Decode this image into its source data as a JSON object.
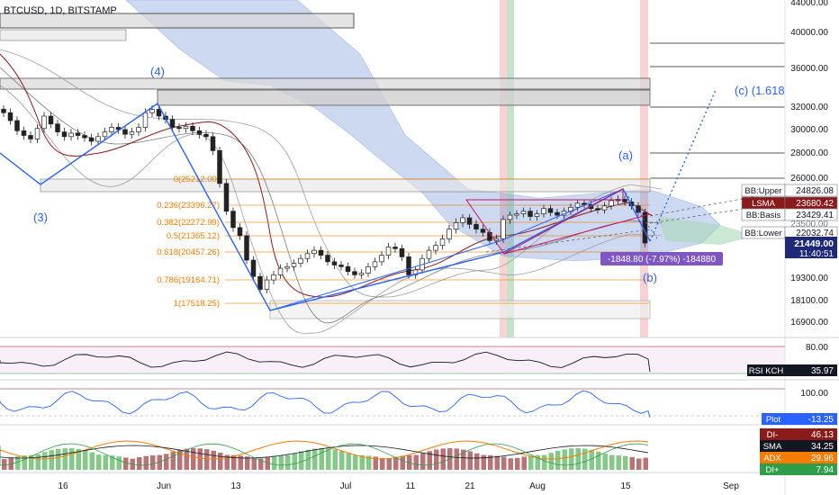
{
  "header": {
    "symbol_line": "BTCUSD, 1D, BITSTAMP"
  },
  "price_axis": {
    "ticks": [
      "44000.00",
      "40000.00",
      "36000.00",
      "32000.00",
      "30000.00",
      "28000.00",
      "26000.00",
      "19300.00",
      "18100.00",
      "16900.00"
    ]
  },
  "time_axis": {
    "labels": [
      "16",
      "Jun",
      "13",
      "Jul",
      "11",
      "21",
      "Aug",
      "15",
      "Sep"
    ]
  },
  "fib": {
    "levels": [
      "0(25212.00)",
      "0.236(23396.27)",
      "0.382(22272.99)",
      "0.5(21365.12)",
      "0.618(20457.26)",
      "0.786(19164.71)",
      "1(17518.25)"
    ]
  },
  "elliott": [
    "(3)",
    "(4)",
    "(a)",
    "(b)",
    "(c) (1.618"
  ],
  "measure": {
    "text": "-1848.80 (-7.97%) -184880"
  },
  "price_tags": [
    {
      "label": "BB:Upper",
      "value": "24826.08",
      "color": "#ffffff"
    },
    {
      "label": "LSMA",
      "value": "23680.42",
      "color": "#8b1a1a"
    },
    {
      "label": "",
      "value": "23500.00",
      "color": "#ffffff"
    },
    {
      "label": "BB:Basis",
      "value": "23429.41",
      "color": "#ffffff"
    },
    {
      "label": "BB:Lower",
      "value": "22032.74",
      "color": "#ffffff"
    }
  ],
  "last_price": {
    "value": "21449.00",
    "countdown": "11:40:51"
  },
  "rsi_pane": {
    "ticks": [
      "80.00"
    ],
    "label": "RSI KCH",
    "value": "35.97"
  },
  "osc_pane": {
    "ticks": [
      "100.00"
    ],
    "label": "Plot",
    "value": "-13.25"
  },
  "dmi_pane": {
    "rows": [
      {
        "label": "DI-",
        "value": "46.13",
        "color": "#8b1a1a"
      },
      {
        "label": "SMA",
        "value": "34.25",
        "color": "#131722"
      },
      {
        "label": "ADX",
        "value": "29.96",
        "color": "#f57c00"
      },
      {
        "label": "DI+",
        "value": "7.94",
        "color": "#2e9e4a"
      }
    ]
  },
  "chart_data": {
    "type": "candlestick",
    "timeframe": "1D",
    "price_range": [
      16500,
      44000
    ],
    "closes_approx": [
      31500,
      30800,
      29900,
      29500,
      29200,
      30100,
      31200,
      30500,
      29800,
      29400,
      29700,
      29500,
      29300,
      29000,
      29400,
      29800,
      30200,
      30000,
      29600,
      29800,
      30200,
      31500,
      31800,
      31200,
      30900,
      30200,
      30100,
      30300,
      29900,
      29600,
      29400,
      28200,
      25600,
      23500,
      22400,
      21900,
      20400,
      19400,
      18700,
      19200,
      19500,
      19900,
      20000,
      20200,
      20500,
      20800,
      21000,
      20700,
      20300,
      20100,
      20000,
      19700,
      19500,
      19600,
      20000,
      20300,
      20700,
      21200,
      21100,
      20600,
      19500,
      19800,
      20500,
      21000,
      21300,
      21700,
      22300,
      22700,
      23000,
      22600,
      22300,
      22100,
      21600,
      21700,
      22900,
      23200,
      23300,
      23500,
      23100,
      23300,
      23700,
      23400,
      23200,
      23500,
      23800,
      24100,
      24000,
      23700,
      23600,
      23900,
      24300,
      24400,
      24200,
      23900,
      23400,
      21449
    ]
  }
}
